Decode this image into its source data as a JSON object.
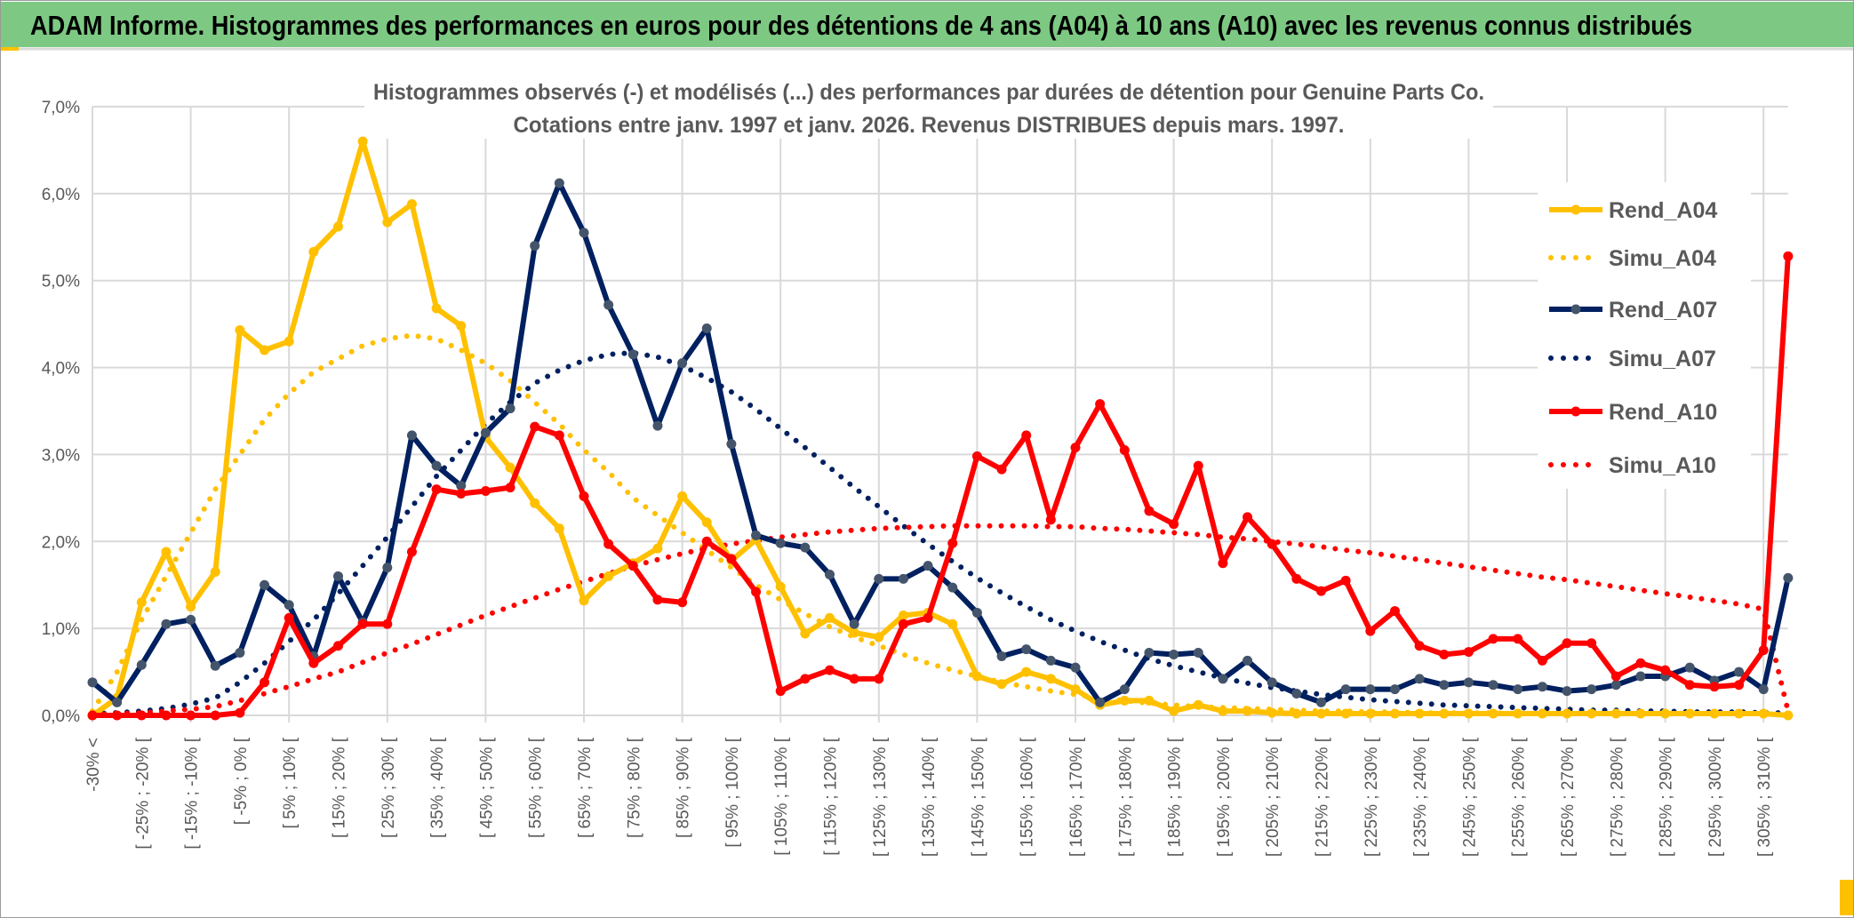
{
  "header": {
    "title": "ADAM Informe. Histogrammes des performances en euros pour des détentions de 4 ans (A04) à 10 ans (A10) avec les revenus connus distribués",
    "background_color": "#7dc983"
  },
  "chart_data": {
    "type": "line",
    "title_line1": "Histogrammes observés (-) et modélisés (...) des performances par durées de détention pour Genuine Parts Co.",
    "title_line2": "Cotations entre janv. 1997 et janv. 2026. Revenus DISTRIBUES depuis mars. 1997.",
    "ylim": [
      0,
      7
    ],
    "y_ticks": [
      "0,0%",
      "1,0%",
      "2,0%",
      "3,0%",
      "4,0%",
      "5,0%",
      "6,0%",
      "7,0%"
    ],
    "grid": true,
    "legend_placement": "right",
    "x_tick_labels": [
      "-30% <",
      "[ -25% ; -20% [",
      "[ -15% ; -10% [",
      "[ -5% ; 0% [",
      "[ 5% ; 10% [",
      "[ 15% ; 20% [",
      "[ 25% ; 30% [",
      "[ 35% ; 40% [",
      "[ 45% ; 50% [",
      "[ 55% ; 60% [",
      "[ 65% ; 70% [",
      "[ 75% ; 80% [",
      "[ 85% ; 90% [",
      "[ 95% ; 100% [",
      "[ 105% ; 110% [",
      "[ 115% ; 120% [",
      "[ 125% ; 130% [",
      "[ 135% ; 140% [",
      "[ 145% ; 150% [",
      "[ 155% ; 160% [",
      "[ 165% ; 170% [",
      "[ 175% ; 180% [",
      "[ 185% ; 190% [",
      "[ 195% ; 200% [",
      "[ 205% ; 210% [",
      "[ 215% ; 220% [",
      "[ 225% ; 230% [",
      "[ 235% ; 240% [",
      "[ 245% ; 250% [",
      "[ 255% ; 260% [",
      "[ 265% ; 270% [",
      "[ 275% ; 280% [",
      "[ 285% ; 290% [",
      "[ 295% ; 300% [",
      "[ 305% ; 310% ["
    ],
    "series": [
      {
        "name": "Rend_A04",
        "style": "solid-markers",
        "color": "#ffc000",
        "values": [
          0.0,
          0.2,
          1.3,
          1.88,
          1.25,
          1.65,
          4.43,
          4.2,
          4.3,
          5.33,
          5.62,
          6.6,
          5.67,
          5.88,
          4.68,
          4.48,
          3.2,
          2.85,
          2.44,
          2.15,
          1.32,
          1.6,
          1.75,
          1.92,
          2.52,
          2.22,
          1.78,
          2.02,
          1.48,
          0.94,
          1.12,
          0.95,
          0.9,
          1.15,
          1.18,
          1.05,
          0.45,
          0.36,
          0.5,
          0.42,
          0.3,
          0.12,
          0.17,
          0.17,
          0.05,
          0.12,
          0.05,
          0.05,
          0.03,
          0.02,
          0.02,
          0.02,
          0.02,
          0.02,
          0.02,
          0.02,
          0.02,
          0.02,
          0.02,
          0.02,
          0.02,
          0.02,
          0.02,
          0.02,
          0.02,
          0.02,
          0.02,
          0.02,
          0.02,
          0.0
        ]
      },
      {
        "name": "Simu_A04",
        "style": "dotted",
        "color": "#ffc000",
        "values": [
          0.05,
          0.5,
          1.1,
          1.6,
          2.1,
          2.6,
          3.0,
          3.4,
          3.7,
          3.95,
          4.1,
          4.25,
          4.33,
          4.37,
          4.33,
          4.2,
          4.05,
          3.85,
          3.6,
          3.35,
          3.05,
          2.8,
          2.5,
          2.3,
          2.1,
          1.9,
          1.7,
          1.5,
          1.33,
          1.17,
          1.02,
          0.9,
          0.8,
          0.7,
          0.6,
          0.52,
          0.45,
          0.38,
          0.33,
          0.28,
          0.24,
          0.2,
          0.17,
          0.14,
          0.12,
          0.1,
          0.09,
          0.08,
          0.07,
          0.06,
          0.05,
          0.05,
          0.04,
          0.04,
          0.03,
          0.03,
          0.03,
          0.03,
          0.02,
          0.02,
          0.02,
          0.02,
          0.02,
          0.02,
          0.02,
          0.02,
          0.02,
          0.02,
          0.02,
          0.02
        ]
      },
      {
        "name": "Rend_A07",
        "style": "solid-markers",
        "color": "#002060",
        "marker_color": "#44546a",
        "values": [
          0.38,
          0.15,
          0.58,
          1.05,
          1.1,
          0.57,
          0.72,
          1.5,
          1.27,
          0.68,
          1.6,
          1.07,
          1.7,
          3.22,
          2.87,
          2.64,
          3.25,
          3.53,
          5.4,
          6.12,
          5.55,
          4.72,
          4.15,
          3.33,
          4.05,
          4.45,
          3.12,
          2.07,
          1.98,
          1.93,
          1.62,
          1.05,
          1.57,
          1.57,
          1.72,
          1.47,
          1.18,
          0.68,
          0.76,
          0.63,
          0.55,
          0.15,
          0.3,
          0.72,
          0.7,
          0.72,
          0.42,
          0.63,
          0.38,
          0.25,
          0.15,
          0.3,
          0.3,
          0.3,
          0.42,
          0.35,
          0.38,
          0.35,
          0.3,
          0.33,
          0.28,
          0.3,
          0.35,
          0.45,
          0.45,
          0.55,
          0.4,
          0.5,
          0.3,
          1.58
        ]
      },
      {
        "name": "Simu_A07",
        "style": "dotted",
        "color": "#002060",
        "values": [
          0.02,
          0.03,
          0.05,
          0.08,
          0.13,
          0.2,
          0.38,
          0.6,
          0.85,
          1.1,
          1.4,
          1.72,
          2.05,
          2.4,
          2.75,
          3.05,
          3.35,
          3.6,
          3.82,
          3.97,
          4.08,
          4.15,
          4.17,
          4.12,
          4.02,
          3.88,
          3.72,
          3.52,
          3.3,
          3.08,
          2.85,
          2.62,
          2.4,
          2.18,
          1.97,
          1.77,
          1.58,
          1.41,
          1.25,
          1.1,
          0.97,
          0.85,
          0.75,
          0.65,
          0.57,
          0.5,
          0.43,
          0.37,
          0.32,
          0.28,
          0.24,
          0.21,
          0.18,
          0.16,
          0.14,
          0.12,
          0.11,
          0.1,
          0.09,
          0.08,
          0.07,
          0.06,
          0.06,
          0.05,
          0.05,
          0.04,
          0.04,
          0.04,
          0.03,
          0.03
        ]
      },
      {
        "name": "Rend_A10",
        "style": "solid-markers",
        "color": "#ff0000",
        "values": [
          0.0,
          0.0,
          0.0,
          0.0,
          0.0,
          0.0,
          0.03,
          0.38,
          1.12,
          0.6,
          0.8,
          1.05,
          1.05,
          1.88,
          2.6,
          2.55,
          2.58,
          2.62,
          3.32,
          3.22,
          2.52,
          1.97,
          1.72,
          1.33,
          1.3,
          2.0,
          1.8,
          1.42,
          0.28,
          0.42,
          0.52,
          0.42,
          0.42,
          1.05,
          1.12,
          1.98,
          2.98,
          2.83,
          3.22,
          2.25,
          3.08,
          3.58,
          3.05,
          2.35,
          2.2,
          2.87,
          1.75,
          2.28,
          1.97,
          1.57,
          1.43,
          1.55,
          0.97,
          1.2,
          0.8,
          0.7,
          0.73,
          0.88,
          0.88,
          0.63,
          0.83,
          0.83,
          0.45,
          0.6,
          0.52,
          0.35,
          0.33,
          0.35,
          0.75,
          5.28
        ]
      },
      {
        "name": "Simu_A10",
        "style": "dotted",
        "color": "#ff0000",
        "values": [
          0.01,
          0.02,
          0.03,
          0.05,
          0.07,
          0.1,
          0.17,
          0.25,
          0.33,
          0.42,
          0.5,
          0.61,
          0.72,
          0.82,
          0.93,
          1.04,
          1.15,
          1.25,
          1.35,
          1.45,
          1.54,
          1.63,
          1.72,
          1.79,
          1.86,
          1.92,
          1.97,
          2.01,
          2.05,
          2.08,
          2.11,
          2.13,
          2.15,
          2.16,
          2.17,
          2.18,
          2.18,
          2.18,
          2.18,
          2.17,
          2.17,
          2.15,
          2.14,
          2.12,
          2.1,
          2.08,
          2.05,
          2.03,
          2.0,
          1.97,
          1.94,
          1.9,
          1.87,
          1.83,
          1.79,
          1.75,
          1.71,
          1.67,
          1.63,
          1.59,
          1.56,
          1.52,
          1.48,
          1.44,
          1.4,
          1.36,
          1.32,
          1.28,
          1.22,
          0.05
        ]
      }
    ]
  }
}
